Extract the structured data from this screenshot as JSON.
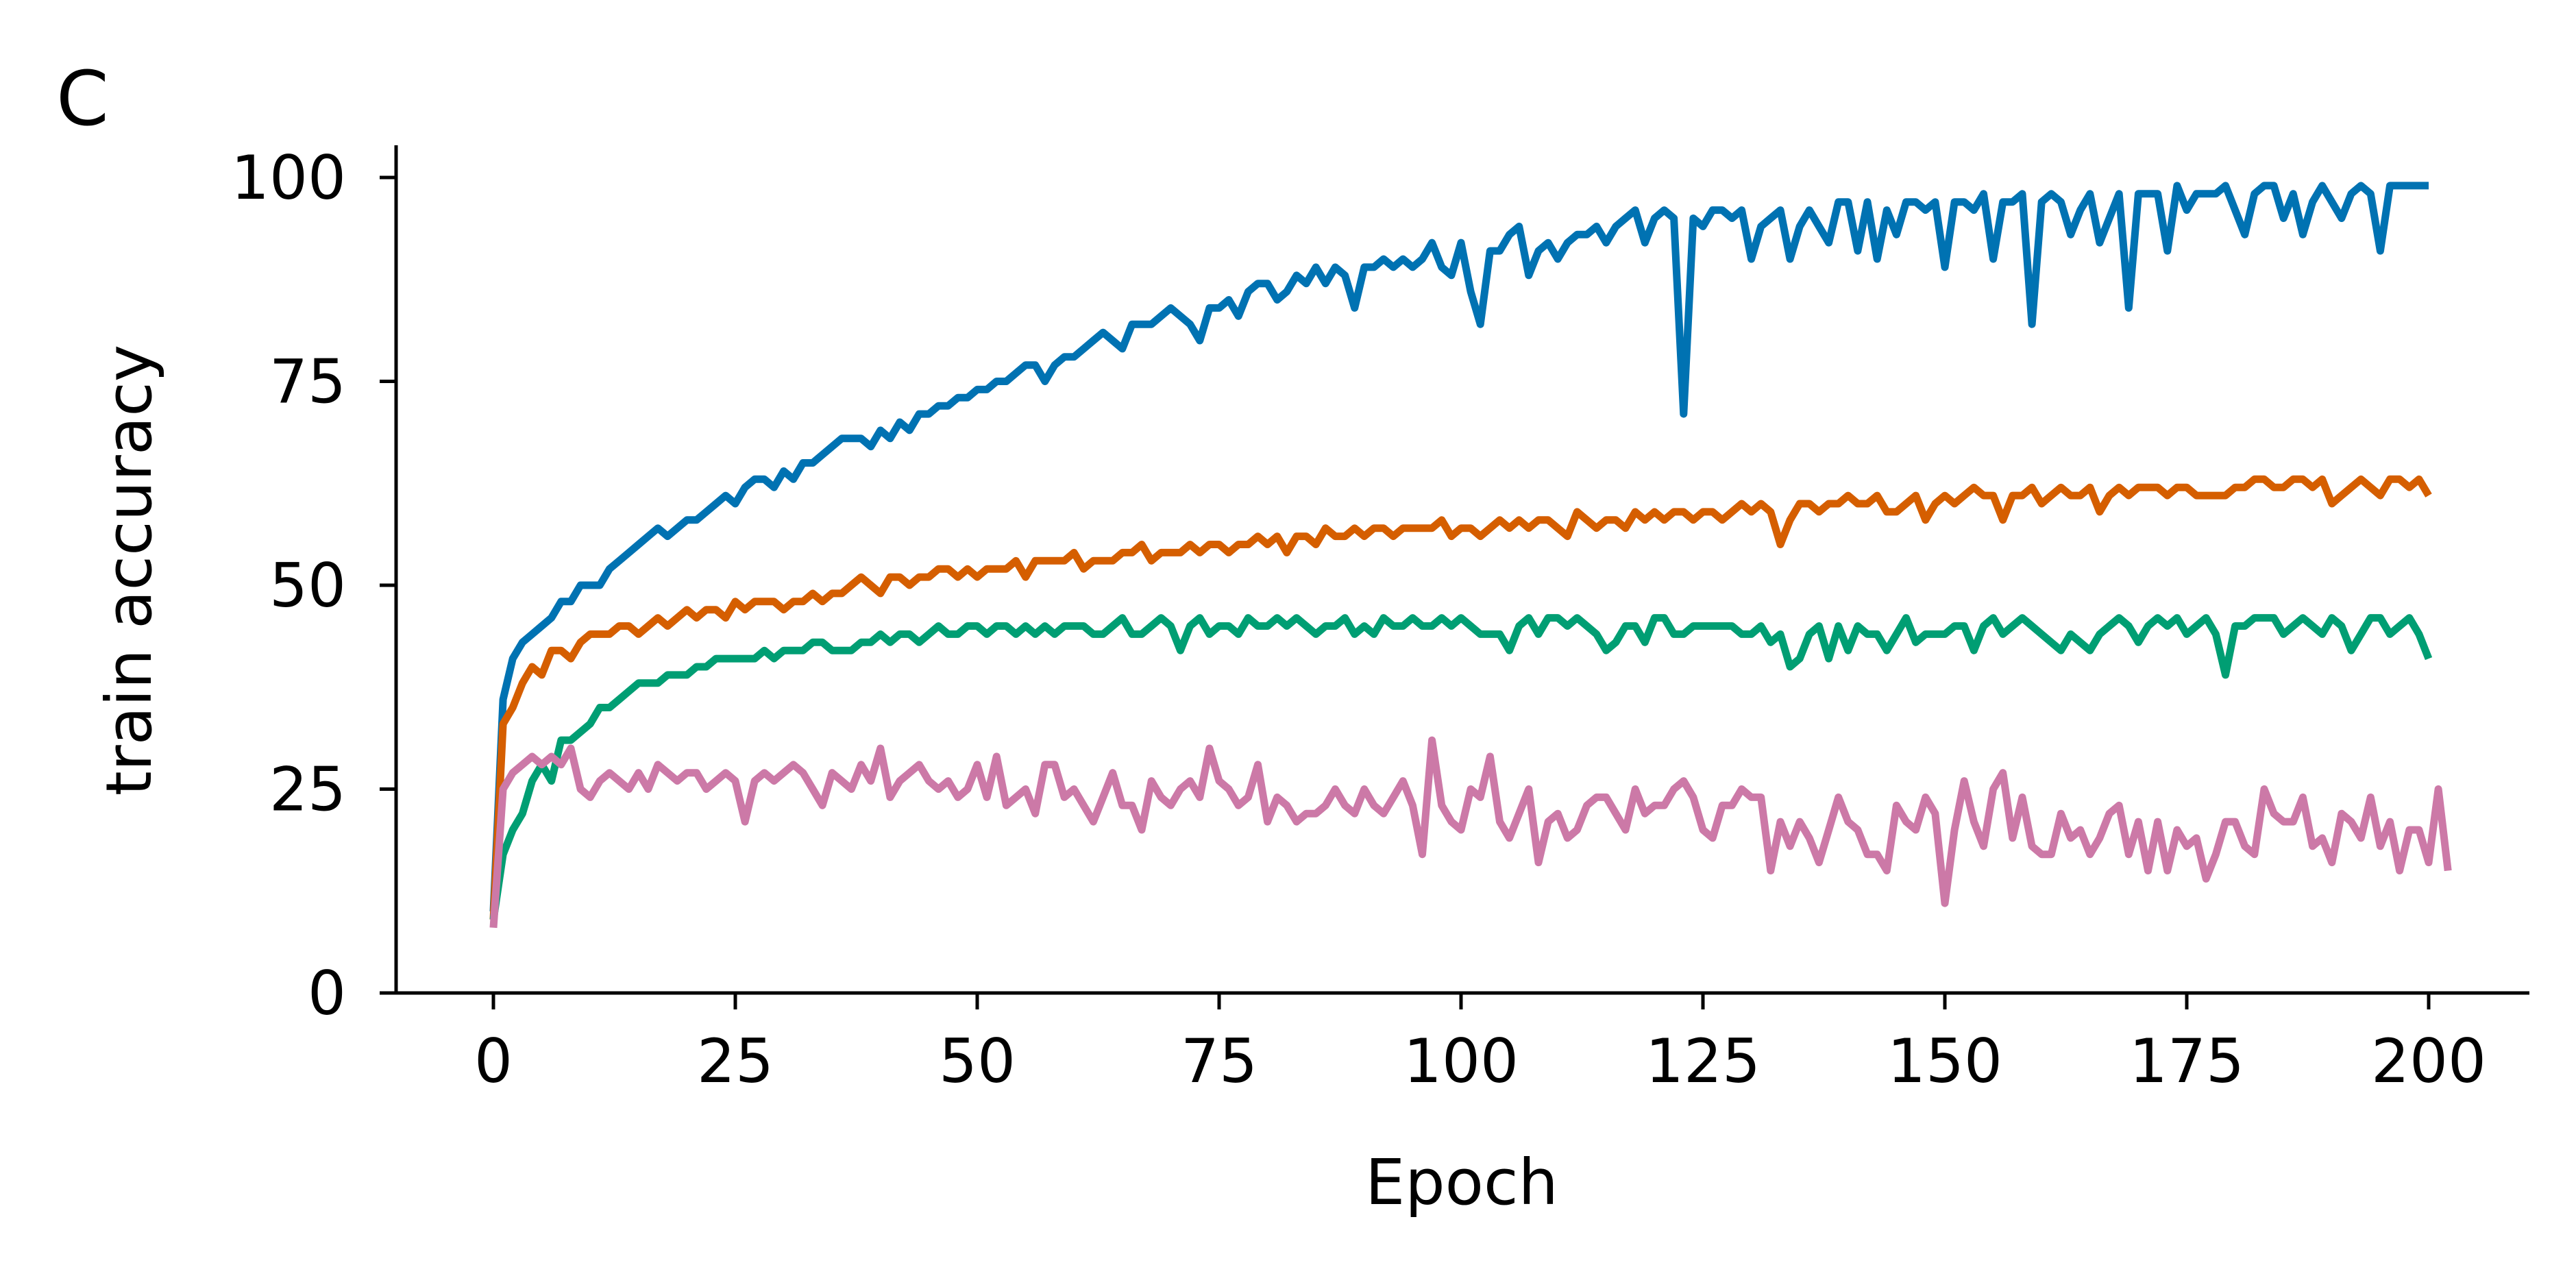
{
  "panel_label": "C",
  "chart_data": {
    "type": "line",
    "title": "",
    "xlabel": "Epoch",
    "ylabel": "train accuracy",
    "xlim": [
      -10,
      210
    ],
    "ylim": [
      0,
      104
    ],
    "xticks": [
      0,
      25,
      50,
      75,
      100,
      125,
      150,
      175,
      200
    ],
    "yticks": [
      0,
      25,
      50,
      75,
      100
    ],
    "grid": false,
    "legend": "none",
    "series": [
      {
        "color": "#0072B2",
        "values": [
          10,
          36,
          41,
          43,
          44,
          45,
          46,
          48,
          48,
          50,
          50,
          50,
          52,
          53,
          54,
          55,
          56,
          57,
          56,
          57,
          58,
          58,
          59,
          60,
          61,
          60,
          62,
          63,
          63,
          62,
          64,
          63,
          65,
          65,
          66,
          67,
          68,
          68,
          68,
          67,
          69,
          68,
          70,
          69,
          71,
          71,
          72,
          72,
          73,
          73,
          74,
          74,
          75,
          75,
          76,
          77,
          77,
          75,
          77,
          78,
          78,
          79,
          80,
          81,
          80,
          79,
          82,
          82,
          82,
          83,
          84,
          83,
          82,
          80,
          84,
          84,
          85,
          83,
          86,
          87,
          87,
          85,
          86,
          88,
          87,
          89,
          87,
          89,
          88,
          84,
          89,
          89,
          90,
          89,
          90,
          89,
          90,
          92,
          89,
          88,
          92,
          86,
          82,
          91,
          91,
          93,
          94,
          88,
          91,
          92,
          90,
          92,
          93,
          93,
          94,
          92,
          94,
          95,
          96,
          92,
          95,
          96,
          95,
          71,
          95,
          94,
          96,
          96,
          95,
          96,
          90,
          94,
          95,
          96,
          90,
          94,
          96,
          94,
          92,
          97,
          97,
          91,
          97,
          90,
          96,
          93,
          97,
          97,
          96,
          97,
          89,
          97,
          97,
          96,
          98,
          90,
          97,
          97,
          98,
          82,
          97,
          98,
          97,
          93,
          96,
          98,
          92,
          95,
          98,
          84,
          98,
          98,
          98,
          91,
          99,
          96,
          98,
          98,
          98,
          99,
          96,
          93,
          98,
          99,
          99,
          95,
          98,
          93,
          97,
          99,
          97,
          95,
          98,
          99,
          98,
          91,
          99,
          99,
          99,
          99,
          99
        ]
      },
      {
        "color": "#D55E00",
        "values": [
          9,
          33,
          35,
          38,
          40,
          39,
          42,
          42,
          41,
          43,
          44,
          44,
          44,
          45,
          45,
          44,
          45,
          46,
          45,
          46,
          47,
          46,
          47,
          47,
          46,
          48,
          47,
          48,
          48,
          48,
          47,
          48,
          48,
          49,
          48,
          49,
          49,
          50,
          51,
          50,
          49,
          51,
          51,
          50,
          51,
          51,
          52,
          52,
          51,
          52,
          51,
          52,
          52,
          52,
          53,
          51,
          53,
          53,
          53,
          53,
          54,
          52,
          53,
          53,
          53,
          54,
          54,
          55,
          53,
          54,
          54,
          54,
          55,
          54,
          55,
          55,
          54,
          55,
          55,
          56,
          55,
          56,
          54,
          56,
          56,
          55,
          57,
          56,
          56,
          57,
          56,
          57,
          57,
          56,
          57,
          57,
          57,
          57,
          58,
          56,
          57,
          57,
          56,
          57,
          58,
          57,
          58,
          57,
          58,
          58,
          57,
          56,
          59,
          58,
          57,
          58,
          58,
          57,
          59,
          58,
          59,
          58,
          59,
          59,
          58,
          59,
          59,
          58,
          59,
          60,
          59,
          60,
          59,
          55,
          58,
          60,
          60,
          59,
          60,
          60,
          61,
          60,
          60,
          61,
          59,
          59,
          60,
          61,
          58,
          60,
          61,
          60,
          61,
          62,
          61,
          61,
          58,
          61,
          61,
          62,
          60,
          61,
          62,
          61,
          61,
          62,
          59,
          61,
          62,
          61,
          62,
          62,
          62,
          61,
          62,
          62,
          61,
          61,
          61,
          61,
          62,
          62,
          63,
          63,
          62,
          62,
          63,
          63,
          62,
          63,
          60,
          61,
          62,
          63,
          62,
          61,
          63,
          63,
          62,
          63,
          61
        ]
      },
      {
        "color": "#009E73",
        "values": [
          9,
          17,
          20,
          22,
          26,
          28,
          26,
          31,
          31,
          32,
          33,
          35,
          35,
          36,
          37,
          38,
          38,
          38,
          39,
          39,
          39,
          40,
          40,
          41,
          41,
          41,
          41,
          41,
          42,
          41,
          42,
          42,
          42,
          43,
          43,
          42,
          42,
          42,
          43,
          43,
          44,
          43,
          44,
          44,
          43,
          44,
          45,
          44,
          44,
          45,
          45,
          44,
          45,
          45,
          44,
          45,
          44,
          45,
          44,
          45,
          45,
          45,
          44,
          44,
          45,
          46,
          44,
          44,
          45,
          46,
          45,
          42,
          45,
          46,
          44,
          45,
          45,
          44,
          46,
          45,
          45,
          46,
          45,
          46,
          45,
          44,
          45,
          45,
          46,
          44,
          45,
          44,
          46,
          45,
          45,
          46,
          45,
          45,
          46,
          45,
          46,
          45,
          44,
          44,
          44,
          42,
          45,
          46,
          44,
          46,
          46,
          45,
          46,
          45,
          44,
          42,
          43,
          45,
          45,
          43,
          46,
          46,
          44,
          44,
          45,
          45,
          45,
          45,
          45,
          44,
          44,
          45,
          43,
          44,
          40,
          41,
          44,
          45,
          41,
          45,
          42,
          45,
          44,
          44,
          42,
          44,
          46,
          43,
          44,
          44,
          44,
          45,
          45,
          42,
          45,
          46,
          44,
          45,
          46,
          45,
          44,
          43,
          42,
          44,
          43,
          42,
          44,
          45,
          46,
          45,
          43,
          45,
          46,
          45,
          46,
          44,
          45,
          46,
          44,
          39,
          45,
          45,
          46,
          46,
          46,
          44,
          45,
          46,
          45,
          44,
          46,
          45,
          42,
          44,
          46,
          46,
          44,
          45,
          46,
          44,
          41
        ]
      },
      {
        "color": "#CC79A7",
        "values": [
          8,
          25,
          27,
          28,
          29,
          28,
          29,
          28,
          30,
          25,
          24,
          26,
          27,
          26,
          25,
          27,
          25,
          28,
          27,
          26,
          27,
          27,
          25,
          26,
          27,
          26,
          21,
          26,
          27,
          26,
          27,
          28,
          27,
          25,
          23,
          27,
          26,
          25,
          28,
          26,
          30,
          24,
          26,
          27,
          28,
          26,
          25,
          26,
          24,
          25,
          28,
          24,
          29,
          23,
          24,
          25,
          22,
          28,
          28,
          24,
          25,
          23,
          21,
          24,
          27,
          23,
          23,
          20,
          26,
          24,
          23,
          25,
          26,
          24,
          30,
          26,
          25,
          23,
          24,
          28,
          21,
          24,
          23,
          21,
          22,
          22,
          23,
          25,
          23,
          22,
          25,
          23,
          22,
          24,
          26,
          23,
          17,
          31,
          23,
          21,
          20,
          25,
          24,
          29,
          21,
          19,
          22,
          25,
          16,
          21,
          22,
          19,
          20,
          23,
          24,
          24,
          22,
          20,
          25,
          22,
          23,
          23,
          25,
          26,
          24,
          20,
          19,
          23,
          23,
          25,
          24,
          24,
          15,
          21,
          18,
          21,
          19,
          16,
          20,
          24,
          21,
          20,
          17,
          17,
          15,
          23,
          21,
          20,
          24,
          22,
          11,
          20,
          26,
          21,
          18,
          25,
          27,
          19,
          24,
          18,
          17,
          17,
          22,
          19,
          20,
          17,
          19,
          22,
          23,
          17,
          21,
          15,
          21,
          15,
          20,
          18,
          19,
          14,
          17,
          21,
          21,
          18,
          17,
          25,
          22,
          21,
          21,
          24,
          18,
          19,
          16,
          22,
          21,
          19,
          24,
          18,
          21,
          15,
          20,
          20,
          16,
          25,
          15
        ]
      }
    ]
  }
}
